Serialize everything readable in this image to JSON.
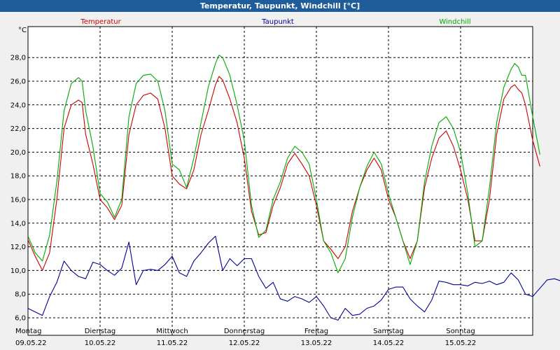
{
  "window": {
    "title": "Temperatur, Taupunkt, Windchill [°C]"
  },
  "chart_data": {
    "type": "line",
    "title": "Temperatur, Taupunkt, Windchill [°C]",
    "ylabel": "°C",
    "ylim": [
      4.5,
      30.8
    ],
    "yticks": [
      "6,0",
      "8,0",
      "10,0",
      "12,0",
      "14,0",
      "16,0",
      "18,0",
      "20,0",
      "22,0",
      "24,0",
      "26,0",
      "28,0"
    ],
    "ytick_values": [
      6,
      8,
      10,
      12,
      14,
      16,
      18,
      20,
      22,
      24,
      26,
      28
    ],
    "xlim": [
      0,
      7
    ],
    "xticks": [
      {
        "day": "Montag",
        "date": "09.05.22",
        "x": 0
      },
      {
        "day": "Dienstag",
        "date": "10.05.22",
        "x": 1
      },
      {
        "day": "Mittwoch",
        "date": "11.05.22",
        "x": 2
      },
      {
        "day": "Donnerstag",
        "date": "12.05.22",
        "x": 3
      },
      {
        "day": "Freitag",
        "date": "13.05.22",
        "x": 4
      },
      {
        "day": "Samstag",
        "date": "14.05.22",
        "x": 5
      },
      {
        "day": "Sonntag",
        "date": "15.05.22",
        "x": 6
      }
    ],
    "grid": true,
    "legend_position": "top",
    "series": [
      {
        "name": "Temperatur",
        "color": "#cc0000",
        "points": [
          [
            0.0,
            12.6
          ],
          [
            0.1,
            11.2
          ],
          [
            0.2,
            10.0
          ],
          [
            0.3,
            11.5
          ],
          [
            0.4,
            16.0
          ],
          [
            0.5,
            22.0
          ],
          [
            0.6,
            24.0
          ],
          [
            0.7,
            24.4
          ],
          [
            0.75,
            24.2
          ],
          [
            0.8,
            21.5
          ],
          [
            0.9,
            19.0
          ],
          [
            1.0,
            16.0
          ],
          [
            1.1,
            15.3
          ],
          [
            1.2,
            14.3
          ],
          [
            1.3,
            15.5
          ],
          [
            1.4,
            21.5
          ],
          [
            1.5,
            24.0
          ],
          [
            1.6,
            24.8
          ],
          [
            1.7,
            25.0
          ],
          [
            1.8,
            24.5
          ],
          [
            1.9,
            22.0
          ],
          [
            2.0,
            18.0
          ],
          [
            2.1,
            17.3
          ],
          [
            2.2,
            16.9
          ],
          [
            2.3,
            18.5
          ],
          [
            2.4,
            21.5
          ],
          [
            2.5,
            23.5
          ],
          [
            2.6,
            25.7
          ],
          [
            2.65,
            26.4
          ],
          [
            2.7,
            26.1
          ],
          [
            2.8,
            24.5
          ],
          [
            2.9,
            22.5
          ],
          [
            3.0,
            19.5
          ],
          [
            3.1,
            15.0
          ],
          [
            3.2,
            13.0
          ],
          [
            3.3,
            13.2
          ],
          [
            3.4,
            15.5
          ],
          [
            3.5,
            17.0
          ],
          [
            3.6,
            19.0
          ],
          [
            3.7,
            19.9
          ],
          [
            3.8,
            19.0
          ],
          [
            3.9,
            18.0
          ],
          [
            4.0,
            15.5
          ],
          [
            4.1,
            12.5
          ],
          [
            4.2,
            11.8
          ],
          [
            4.3,
            11.0
          ],
          [
            4.4,
            12.0
          ],
          [
            4.5,
            15.0
          ],
          [
            4.6,
            17.0
          ],
          [
            4.7,
            18.5
          ],
          [
            4.8,
            19.5
          ],
          [
            4.9,
            18.5
          ],
          [
            5.0,
            16.0
          ],
          [
            5.1,
            14.5
          ],
          [
            5.2,
            12.5
          ],
          [
            5.3,
            11.0
          ],
          [
            5.4,
            12.5
          ],
          [
            5.5,
            17.0
          ],
          [
            5.6,
            19.5
          ],
          [
            5.7,
            21.2
          ],
          [
            5.8,
            21.8
          ],
          [
            5.9,
            20.5
          ],
          [
            6.0,
            18.5
          ],
          [
            6.1,
            16.0
          ],
          [
            6.2,
            12.5
          ],
          [
            6.3,
            12.5
          ],
          [
            6.4,
            16.0
          ],
          [
            6.5,
            21.5
          ],
          [
            6.6,
            24.5
          ],
          [
            6.7,
            25.5
          ],
          [
            6.75,
            25.7
          ],
          [
            6.8,
            25.3
          ],
          [
            6.85,
            25.0
          ],
          [
            6.9,
            24.0
          ],
          [
            7.0,
            21.0
          ],
          [
            7.1,
            18.8
          ]
        ]
      },
      {
        "name": "Taupunkt",
        "color": "#000099",
        "points": [
          [
            0.0,
            6.8
          ],
          [
            0.1,
            6.5
          ],
          [
            0.2,
            6.2
          ],
          [
            0.3,
            7.8
          ],
          [
            0.4,
            9.0
          ],
          [
            0.5,
            10.8
          ],
          [
            0.6,
            10.0
          ],
          [
            0.7,
            9.5
          ],
          [
            0.8,
            9.3
          ],
          [
            0.9,
            10.7
          ],
          [
            1.0,
            10.5
          ],
          [
            1.1,
            10.0
          ],
          [
            1.2,
            9.6
          ],
          [
            1.3,
            10.2
          ],
          [
            1.4,
            12.4
          ],
          [
            1.5,
            8.8
          ],
          [
            1.6,
            10.0
          ],
          [
            1.7,
            10.1
          ],
          [
            1.8,
            10.0
          ],
          [
            1.9,
            10.5
          ],
          [
            2.0,
            11.2
          ],
          [
            2.1,
            9.8
          ],
          [
            2.2,
            9.5
          ],
          [
            2.3,
            10.8
          ],
          [
            2.4,
            11.5
          ],
          [
            2.5,
            12.3
          ],
          [
            2.6,
            12.9
          ],
          [
            2.7,
            10.0
          ],
          [
            2.8,
            11.0
          ],
          [
            2.9,
            10.4
          ],
          [
            3.0,
            11.0
          ],
          [
            3.1,
            11.0
          ],
          [
            3.2,
            9.5
          ],
          [
            3.3,
            8.5
          ],
          [
            3.4,
            9.0
          ],
          [
            3.5,
            7.6
          ],
          [
            3.6,
            7.4
          ],
          [
            3.7,
            7.8
          ],
          [
            3.8,
            7.6
          ],
          [
            3.9,
            7.3
          ],
          [
            4.0,
            7.8
          ],
          [
            4.1,
            7.0
          ],
          [
            4.2,
            6.0
          ],
          [
            4.3,
            5.8
          ],
          [
            4.4,
            6.8
          ],
          [
            4.5,
            6.2
          ],
          [
            4.6,
            6.3
          ],
          [
            4.7,
            6.8
          ],
          [
            4.8,
            7.0
          ],
          [
            4.9,
            7.5
          ],
          [
            5.0,
            8.4
          ],
          [
            5.1,
            8.6
          ],
          [
            5.2,
            8.6
          ],
          [
            5.3,
            7.6
          ],
          [
            5.4,
            7.0
          ],
          [
            5.5,
            6.5
          ],
          [
            5.6,
            7.5
          ],
          [
            5.7,
            9.1
          ],
          [
            5.8,
            9.0
          ],
          [
            5.9,
            8.8
          ],
          [
            6.0,
            8.8
          ],
          [
            6.1,
            8.7
          ],
          [
            6.2,
            9.0
          ],
          [
            6.3,
            8.9
          ],
          [
            6.4,
            9.1
          ],
          [
            6.5,
            8.8
          ],
          [
            6.6,
            9.0
          ],
          [
            6.7,
            9.8
          ],
          [
            6.8,
            9.2
          ],
          [
            6.9,
            8.0
          ],
          [
            7.0,
            7.8
          ],
          [
            7.1,
            8.5
          ],
          [
            7.2,
            9.2
          ],
          [
            7.3,
            9.3
          ],
          [
            7.4,
            9.1
          ]
        ]
      },
      {
        "name": "Windchill",
        "color": "#00aa00",
        "points": [
          [
            0.0,
            12.9
          ],
          [
            0.1,
            11.5
          ],
          [
            0.2,
            10.8
          ],
          [
            0.3,
            13.0
          ],
          [
            0.4,
            17.5
          ],
          [
            0.5,
            23.5
          ],
          [
            0.6,
            25.8
          ],
          [
            0.7,
            26.3
          ],
          [
            0.75,
            26.0
          ],
          [
            0.8,
            23.5
          ],
          [
            0.9,
            20.5
          ],
          [
            1.0,
            16.5
          ],
          [
            1.1,
            15.8
          ],
          [
            1.2,
            14.5
          ],
          [
            1.3,
            16.0
          ],
          [
            1.4,
            23.0
          ],
          [
            1.5,
            25.8
          ],
          [
            1.6,
            26.5
          ],
          [
            1.7,
            26.6
          ],
          [
            1.8,
            26.0
          ],
          [
            1.9,
            23.5
          ],
          [
            2.0,
            19.0
          ],
          [
            2.1,
            18.5
          ],
          [
            2.2,
            17.0
          ],
          [
            2.3,
            19.5
          ],
          [
            2.4,
            22.5
          ],
          [
            2.5,
            25.5
          ],
          [
            2.6,
            27.5
          ],
          [
            2.65,
            28.2
          ],
          [
            2.7,
            28.0
          ],
          [
            2.8,
            26.5
          ],
          [
            2.9,
            24.0
          ],
          [
            3.0,
            21.0
          ],
          [
            3.1,
            15.5
          ],
          [
            3.2,
            12.8
          ],
          [
            3.3,
            13.4
          ],
          [
            3.4,
            16.0
          ],
          [
            3.5,
            17.5
          ],
          [
            3.6,
            19.5
          ],
          [
            3.7,
            20.5
          ],
          [
            3.8,
            20.0
          ],
          [
            3.9,
            19.0
          ],
          [
            4.0,
            16.0
          ],
          [
            4.1,
            12.5
          ],
          [
            4.2,
            11.5
          ],
          [
            4.3,
            9.8
          ],
          [
            4.4,
            11.0
          ],
          [
            4.5,
            14.5
          ],
          [
            4.6,
            17.0
          ],
          [
            4.7,
            18.8
          ],
          [
            4.8,
            20.0
          ],
          [
            4.9,
            19.0
          ],
          [
            5.0,
            16.5
          ],
          [
            5.1,
            14.5
          ],
          [
            5.2,
            12.5
          ],
          [
            5.3,
            10.5
          ],
          [
            5.4,
            12.5
          ],
          [
            5.5,
            17.5
          ],
          [
            5.6,
            20.5
          ],
          [
            5.7,
            22.5
          ],
          [
            5.8,
            23.0
          ],
          [
            5.9,
            22.0
          ],
          [
            6.0,
            20.0
          ],
          [
            6.1,
            16.5
          ],
          [
            6.2,
            12.0
          ],
          [
            6.3,
            12.5
          ],
          [
            6.4,
            17.0
          ],
          [
            6.5,
            22.5
          ],
          [
            6.6,
            25.5
          ],
          [
            6.7,
            27.0
          ],
          [
            6.75,
            27.5
          ],
          [
            6.8,
            27.2
          ],
          [
            6.85,
            26.5
          ],
          [
            6.9,
            26.5
          ],
          [
            7.0,
            23.0
          ],
          [
            7.1,
            19.8
          ]
        ]
      }
    ]
  }
}
